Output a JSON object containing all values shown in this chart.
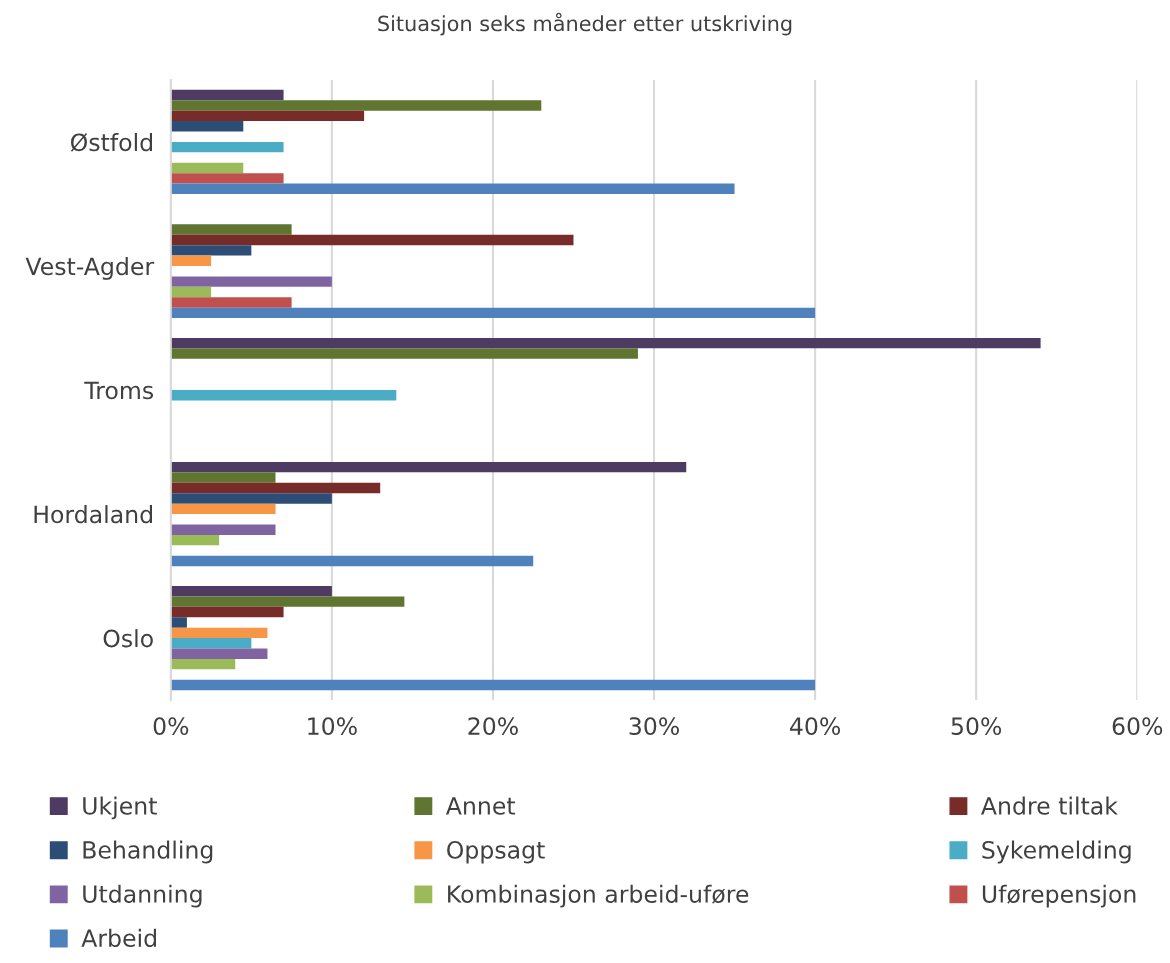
{
  "chart_data": {
    "type": "bar",
    "orientation": "horizontal",
    "title": "Situasjon seks måneder etter utskriving",
    "categories": [
      "Østfold",
      "Vest-Agder",
      "Troms",
      "Hordaland",
      "Oslo"
    ],
    "series": [
      {
        "name": "Ukjent",
        "color": "#4e3b62",
        "values": [
          7,
          null,
          54,
          32,
          10
        ]
      },
      {
        "name": "Annet",
        "color": "#5f7530",
        "values": [
          23,
          7.5,
          29,
          6.5,
          14.5
        ]
      },
      {
        "name": "Andre tiltak",
        "color": "#772c2a",
        "values": [
          12,
          25,
          null,
          13,
          7
        ]
      },
      {
        "name": "Behandling",
        "color": "#2c4d75",
        "values": [
          4.5,
          5,
          null,
          10,
          1
        ]
      },
      {
        "name": "Oppsagt",
        "color": "#f79646",
        "values": [
          null,
          2.5,
          null,
          6.5,
          6
        ]
      },
      {
        "name": "Sykemelding",
        "color": "#4bacc6",
        "values": [
          7,
          null,
          14,
          null,
          5
        ]
      },
      {
        "name": "Utdanning",
        "color": "#8064a2",
        "values": [
          null,
          10,
          null,
          6.5,
          6
        ]
      },
      {
        "name": "Kombinasjon arbeid-uføre",
        "color": "#9bbb59",
        "values": [
          4.5,
          2.5,
          null,
          3,
          4
        ]
      },
      {
        "name": "Uførepensjon",
        "color": "#c0504d",
        "values": [
          7,
          7.5,
          null,
          null,
          null
        ]
      },
      {
        "name": "Arbeid",
        "color": "#4f81bd",
        "values": [
          35,
          40,
          null,
          22.5,
          40
        ]
      }
    ],
    "xlim": [
      0,
      60
    ],
    "xticks": [
      {
        "value": 0,
        "label": "0%"
      },
      {
        "value": 10,
        "label": "10%"
      },
      {
        "value": 20,
        "label": "20%"
      },
      {
        "value": 30,
        "label": "30%"
      },
      {
        "value": 40,
        "label": "40%"
      },
      {
        "value": 50,
        "label": "50%"
      },
      {
        "value": 60,
        "label": "60%"
      }
    ],
    "grid": "x",
    "legend": "bottom"
  }
}
